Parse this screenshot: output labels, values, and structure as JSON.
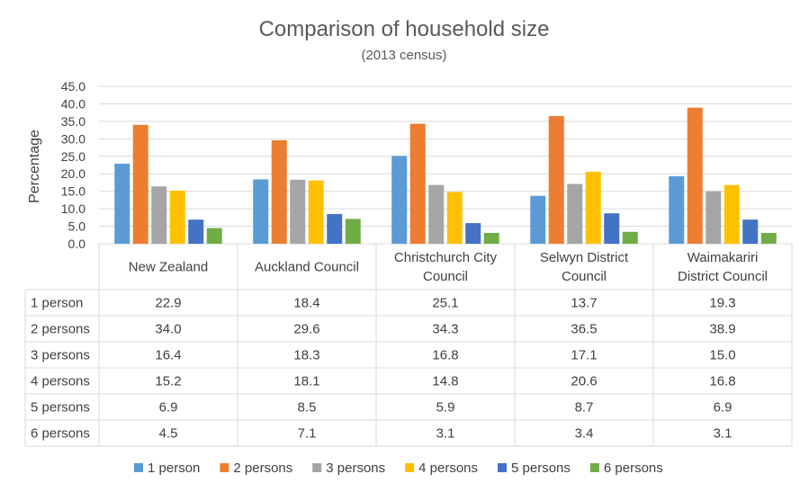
{
  "chart_data": {
    "type": "bar",
    "title": "Comparison of household size",
    "subtitle": "(2013 census)",
    "ylabel": "Percentage",
    "xlabel": "",
    "ylim": [
      0,
      45
    ],
    "yticks": [
      "0.0",
      "5.0",
      "10.0",
      "15.0",
      "20.0",
      "25.0",
      "30.0",
      "35.0",
      "40.0",
      "45.0"
    ],
    "grid": true,
    "legend_position": "bottom",
    "categories": [
      [
        "New Zealand"
      ],
      [
        "Auckland Council"
      ],
      [
        "Christchurch City",
        "Council"
      ],
      [
        "Selwyn District",
        "Council"
      ],
      [
        "Waimakariri",
        "District Council"
      ]
    ],
    "series": [
      {
        "name": "1 person",
        "color": "#5B9BD5",
        "values": [
          22.9,
          18.4,
          25.1,
          13.7,
          19.3
        ],
        "labels": [
          "22.9",
          "18.4",
          "25.1",
          "13.7",
          "19.3"
        ]
      },
      {
        "name": "2 persons",
        "color": "#ED7D31",
        "values": [
          34.0,
          29.6,
          34.3,
          36.5,
          38.9
        ],
        "labels": [
          "34.0",
          "29.6",
          "34.3",
          "36.5",
          "38.9"
        ]
      },
      {
        "name": "3 persons",
        "color": "#A5A5A5",
        "values": [
          16.4,
          18.3,
          16.8,
          17.1,
          15.0
        ],
        "labels": [
          "16.4",
          "18.3",
          "16.8",
          "17.1",
          "15.0"
        ]
      },
      {
        "name": "4 persons",
        "color": "#FFC000",
        "values": [
          15.2,
          18.1,
          14.8,
          20.6,
          16.8
        ],
        "labels": [
          "15.2",
          "18.1",
          "14.8",
          "20.6",
          "16.8"
        ]
      },
      {
        "name": "5 persons",
        "color": "#4472C4",
        "values": [
          6.9,
          8.5,
          5.9,
          8.7,
          6.9
        ],
        "labels": [
          "6.9",
          "8.5",
          "5.9",
          "8.7",
          "6.9"
        ]
      },
      {
        "name": "6 persons",
        "color": "#70AD47",
        "values": [
          4.5,
          7.1,
          3.1,
          3.4,
          3.1
        ],
        "labels": [
          "4.5",
          "7.1",
          "3.1",
          "3.4",
          "3.1"
        ]
      }
    ]
  }
}
